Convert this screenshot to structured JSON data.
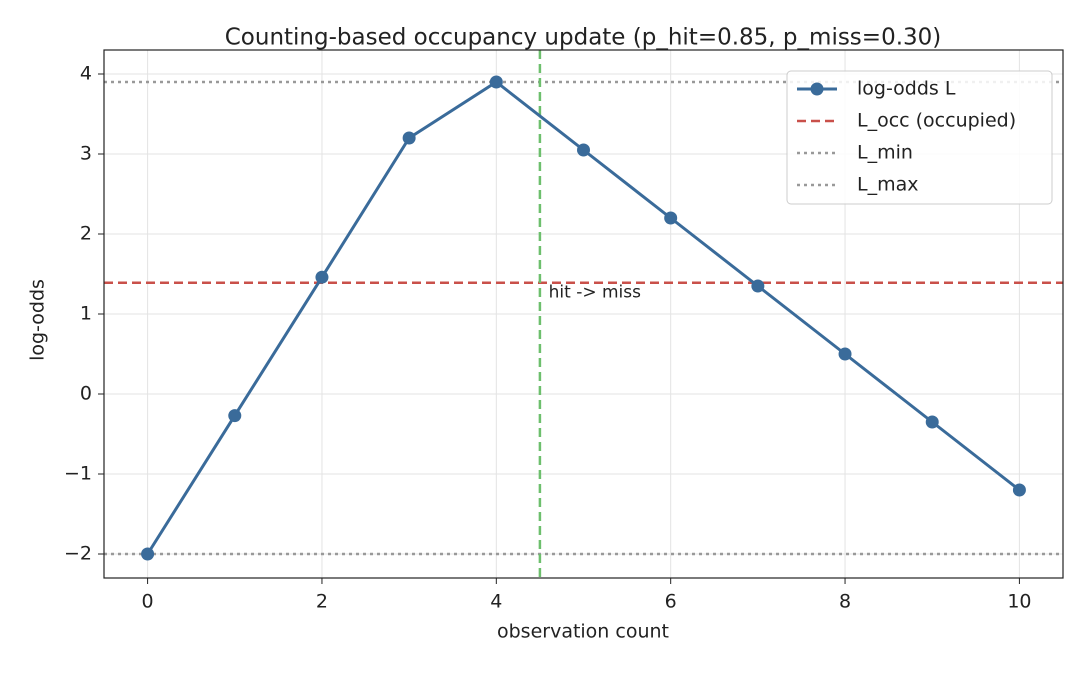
{
  "chart_data": {
    "type": "line",
    "title": "Counting-based occupancy update (p_hit=0.85, p_miss=0.30)",
    "xlabel": "observation count",
    "ylabel": "log-odds",
    "x": [
      0,
      1,
      2,
      3,
      4,
      5,
      6,
      7,
      8,
      9,
      10
    ],
    "series": [
      {
        "name": "log-odds L",
        "color": "#3a6b9a",
        "values": [
          -2.0,
          -0.27,
          1.46,
          3.2,
          3.9,
          3.05,
          2.2,
          1.35,
          0.5,
          -0.35,
          -1.2
        ]
      }
    ],
    "hlines": [
      {
        "name": "L_occ (occupied)",
        "value": 1.39,
        "color": "#c9504a",
        "style": "dashed"
      },
      {
        "name": "L_min",
        "value": -2.0,
        "color": "#999999",
        "style": "dotted"
      },
      {
        "name": "L_max",
        "value": 3.9,
        "color": "#999999",
        "style": "dotted"
      }
    ],
    "vlines": [
      {
        "value": 4.5,
        "color": "#6dbf6d",
        "style": "dashed"
      }
    ],
    "annotations": [
      {
        "text": "hit -> miss",
        "x": 4.6,
        "y": 1.27
      }
    ],
    "xlim": [
      -0.5,
      10.5
    ],
    "ylim": [
      -2.3,
      4.3
    ],
    "xticks": [
      0,
      2,
      4,
      6,
      8,
      10
    ],
    "yticks": [
      {
        "value": -2,
        "label": "−2"
      },
      {
        "value": -1,
        "label": "−1"
      },
      0,
      1,
      2,
      3,
      4
    ],
    "grid": true,
    "legend": "upper right"
  }
}
